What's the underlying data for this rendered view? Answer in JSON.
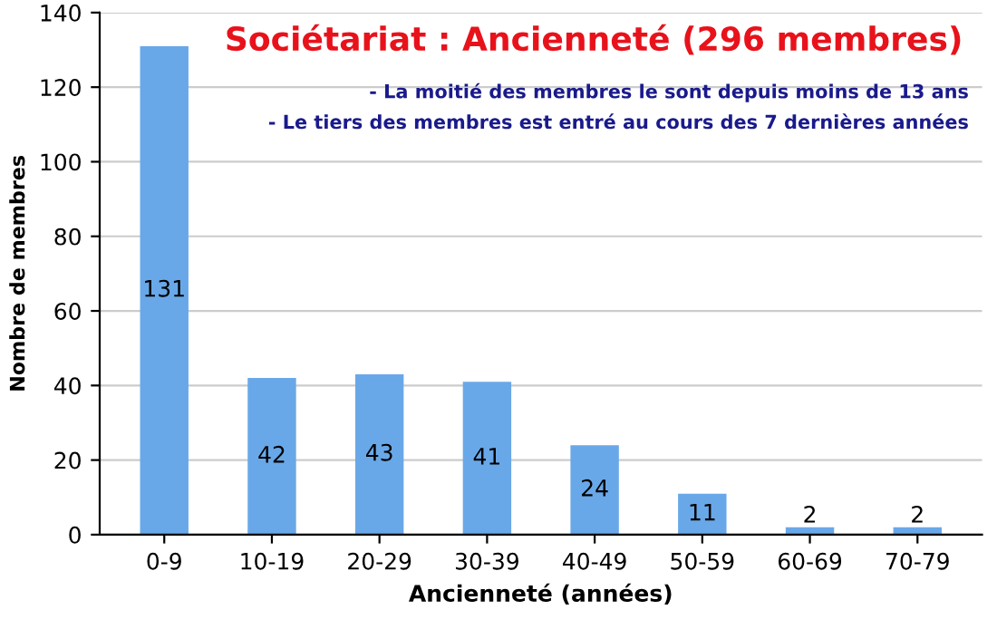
{
  "chart_data": {
    "type": "bar",
    "title": "Sociétariat : Ancienneté (296 membres)",
    "xlabel": "Ancienneté (années)",
    "ylabel": "Nombre de membres",
    "annotations": [
      "- La moitié des membres le sont depuis moins de 13 ans",
      "- Le tiers des membres est entré au cours des 7 dernières années"
    ],
    "categories": [
      "0-9",
      "10-19",
      "20-29",
      "30-39",
      "40-49",
      "50-59",
      "60-69",
      "70-79"
    ],
    "values": [
      131,
      42,
      43,
      41,
      24,
      11,
      2,
      2
    ],
    "color": "#69a8e8",
    "ylim": [
      0,
      140
    ],
    "yticks": [
      0,
      20,
      40,
      60,
      80,
      100,
      120,
      140
    ],
    "grid": "y",
    "data_labels": true
  }
}
